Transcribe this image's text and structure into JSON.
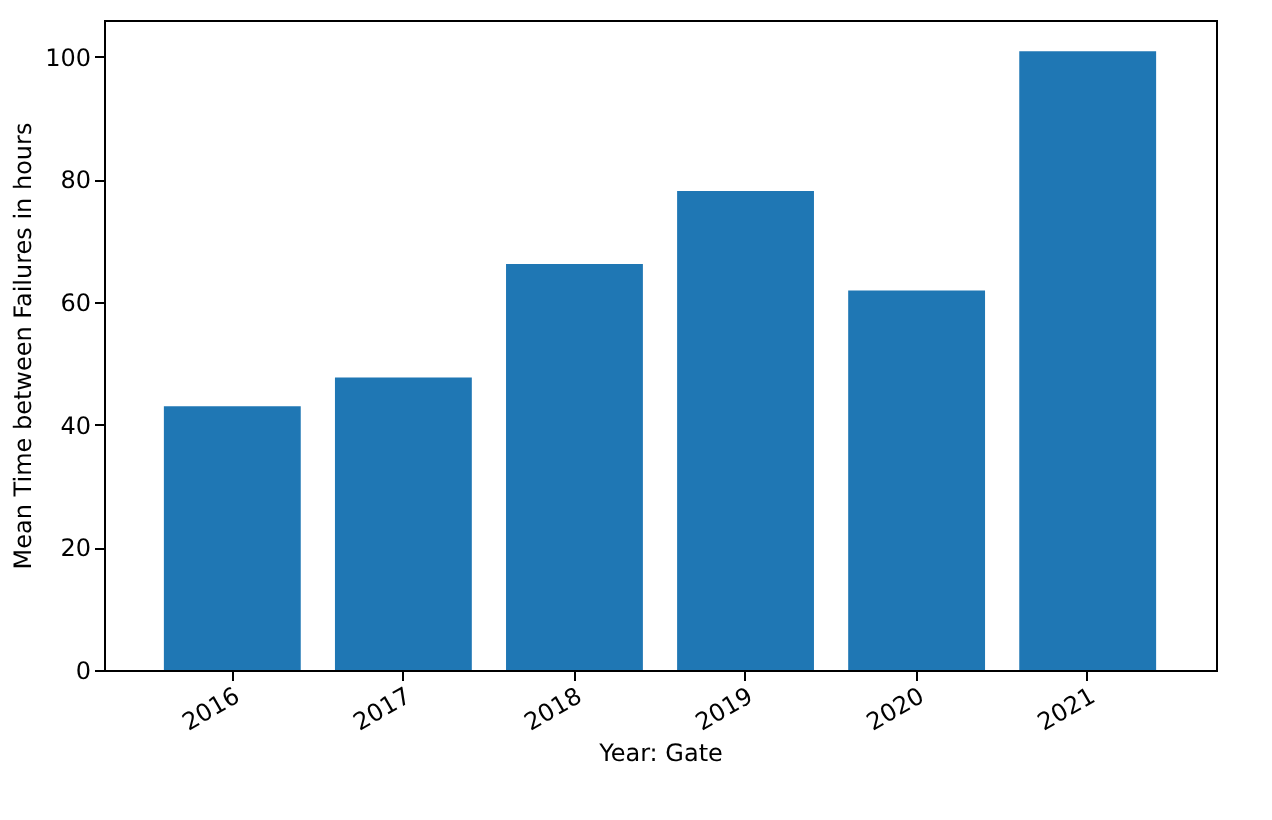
{
  "chart_data": {
    "type": "bar",
    "xlabel": "Year: Gate",
    "ylabel": "Mean Time between Failures in hours",
    "categories": [
      "2016",
      "2017",
      "2018",
      "2019",
      "2020",
      "2021"
    ],
    "values": [
      43.0,
      47.7,
      66.2,
      78.1,
      61.9,
      100.9
    ],
    "color": "#1f77b4",
    "ylim": [
      0,
      106
    ],
    "yticks": [
      0,
      20,
      40,
      60,
      80,
      100
    ],
    "grid": false
  }
}
